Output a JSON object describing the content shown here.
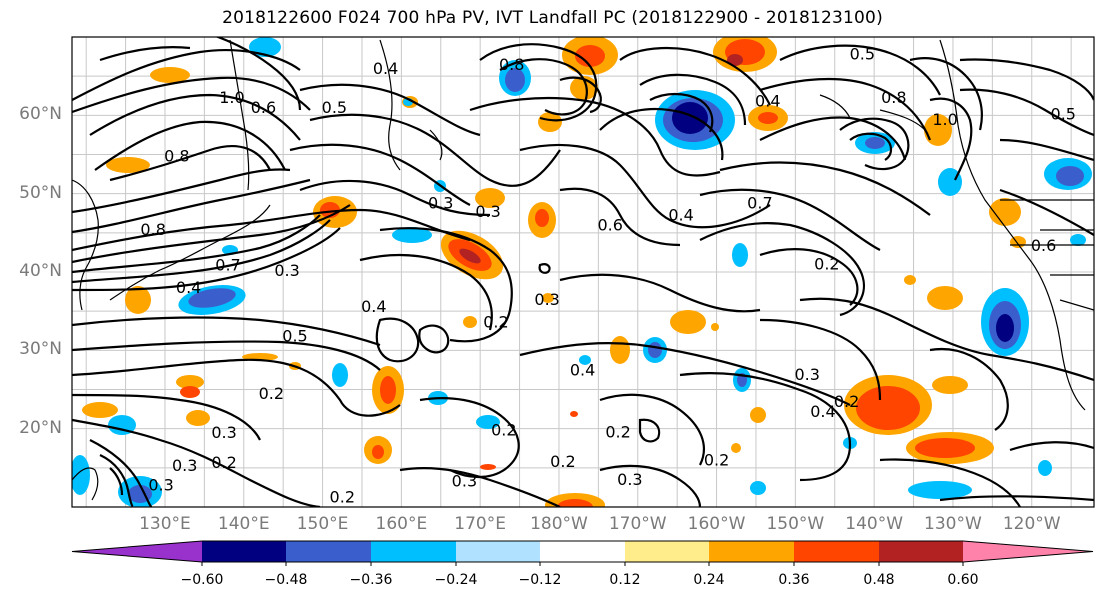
{
  "title": "2018122600 F024 700 hPa PV, IVT Landfall PC (2018122900 - 2018123100)",
  "map": {
    "lat_labels": [
      {
        "lat": 60,
        "text": "60°N"
      },
      {
        "lat": 50,
        "text": "50°N"
      },
      {
        "lat": 40,
        "text": "40°N"
      },
      {
        "lat": 30,
        "text": "30°N"
      },
      {
        "lat": 20,
        "text": "20°N"
      }
    ],
    "lon_labels": [
      {
        "lon": 130,
        "text": "130°E"
      },
      {
        "lon": 140,
        "text": "140°E"
      },
      {
        "lon": 150,
        "text": "150°E"
      },
      {
        "lon": 160,
        "text": "160°E"
      },
      {
        "lon": 170,
        "text": "170°E"
      },
      {
        "lon": 180,
        "text": "180°W"
      },
      {
        "lon": 190,
        "text": "170°W"
      },
      {
        "lon": 200,
        "text": "160°W"
      },
      {
        "lon": 210,
        "text": "150°W"
      },
      {
        "lon": 220,
        "text": "140°W"
      },
      {
        "lon": 230,
        "text": "130°W"
      },
      {
        "lon": 240,
        "text": "120°W"
      }
    ],
    "contour_labels": [
      {
        "text": "1.0",
        "lon": 138.5,
        "lat": 62.3
      },
      {
        "text": "0.6",
        "lon": 142.5,
        "lat": 61.0
      },
      {
        "text": "0.5",
        "lon": 151.5,
        "lat": 61.0
      },
      {
        "text": "0.4",
        "lon": 158.0,
        "lat": 66.0
      },
      {
        "text": "0.8",
        "lon": 174.0,
        "lat": 66.5
      },
      {
        "text": "0.8",
        "lon": 131.5,
        "lat": 54.8
      },
      {
        "text": "0.8",
        "lon": 128.5,
        "lat": 45.4
      },
      {
        "text": "0.7",
        "lon": 138.0,
        "lat": 40.9
      },
      {
        "text": "0.3",
        "lon": 145.5,
        "lat": 40.2
      },
      {
        "text": "0.4",
        "lon": 133.0,
        "lat": 38.0
      },
      {
        "text": "0.4",
        "lon": 156.5,
        "lat": 35.6
      },
      {
        "text": "0.5",
        "lon": 146.5,
        "lat": 31.8
      },
      {
        "text": "0.3",
        "lon": 165.0,
        "lat": 48.8
      },
      {
        "text": "0.3",
        "lon": 171.0,
        "lat": 47.7
      },
      {
        "text": "0.6",
        "lon": 186.5,
        "lat": 46.0
      },
      {
        "text": "0.4",
        "lon": 195.5,
        "lat": 47.3
      },
      {
        "text": "0.7",
        "lon": 205.5,
        "lat": 48.8
      },
      {
        "text": "0.4",
        "lon": 206.5,
        "lat": 61.8
      },
      {
        "text": "0.5",
        "lon": 218.5,
        "lat": 67.8
      },
      {
        "text": "0.8",
        "lon": 222.5,
        "lat": 62.3
      },
      {
        "text": "1.0",
        "lon": 229.0,
        "lat": 59.5
      },
      {
        "text": "0.2",
        "lon": 214.0,
        "lat": 41.0
      },
      {
        "text": "0.3",
        "lon": 178.5,
        "lat": 36.5
      },
      {
        "text": "0.2",
        "lon": 172.0,
        "lat": 33.6
      },
      {
        "text": "0.4",
        "lon": 183.0,
        "lat": 27.5
      },
      {
        "text": "0.3",
        "lon": 211.5,
        "lat": 26.9
      },
      {
        "text": "0.4",
        "lon": 213.5,
        "lat": 22.2
      },
      {
        "text": "0.2",
        "lon": 216.5,
        "lat": 23.5
      },
      {
        "text": "0.2",
        "lon": 143.5,
        "lat": 24.5
      },
      {
        "text": "0.3",
        "lon": 137.5,
        "lat": 19.5
      },
      {
        "text": "0.2",
        "lon": 137.5,
        "lat": 15.7
      },
      {
        "text": "0.3",
        "lon": 132.5,
        "lat": 15.3
      },
      {
        "text": "0.3",
        "lon": 129.5,
        "lat": 12.8
      },
      {
        "text": "0.2",
        "lon": 173.0,
        "lat": 19.8
      },
      {
        "text": "0.2",
        "lon": 187.5,
        "lat": 19.6
      },
      {
        "text": "0.2",
        "lon": 200.0,
        "lat": 16.0
      },
      {
        "text": "0.2",
        "lon": 180.5,
        "lat": 15.8
      },
      {
        "text": "0.3",
        "lon": 168.0,
        "lat": 13.3
      },
      {
        "text": "0.3",
        "lon": 189.0,
        "lat": 13.5
      },
      {
        "text": "0.2",
        "lon": 152.5,
        "lat": 11.3
      },
      {
        "text": "0.6",
        "lon": 241.5,
        "lat": 43.4
      },
      {
        "text": "0.5",
        "lon": 244.0,
        "lat": 60.2
      }
    ],
    "colors": {
      "neg_060": "#9932cc",
      "neg_048": "#000080",
      "neg_036": "#3a5fcd",
      "neg_024": "#00bfff",
      "neg_012": "#b0e2ff",
      "pos_012": "#ffec8b",
      "pos_024": "#ffa500",
      "pos_036": "#ff4500",
      "pos_048": "#b22222",
      "pos_060": "#ff82ab"
    }
  },
  "colorbar": {
    "colors": [
      "#9932cc",
      "#000080",
      "#3a5fcd",
      "#00bfff",
      "#b0e2ff",
      "#ffffff",
      "#ffec8b",
      "#ffa500",
      "#ff4500",
      "#b22222",
      "#ff82ab"
    ],
    "tick_labels": [
      "−0.60",
      "−0.48",
      "−0.36",
      "−0.24",
      "−0.12",
      "0.12",
      "0.24",
      "0.36",
      "0.48",
      "0.60"
    ]
  }
}
